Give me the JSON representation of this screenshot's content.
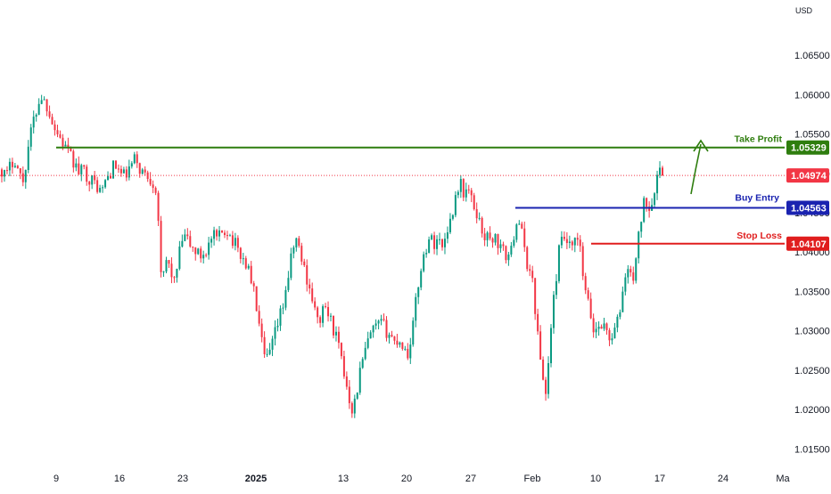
{
  "chart_data": {
    "type": "candlestick",
    "currency": "USD",
    "y_range": [
      1.0138,
      1.0675
    ],
    "y_ticks": [
      "1.06500",
      "1.06000",
      "1.05500",
      "1.05000",
      "1.04500",
      "1.04000",
      "1.03500",
      "1.03000",
      "1.02500",
      "1.02000",
      "1.01500"
    ],
    "x_ticks": [
      {
        "label": "9",
        "bold": false
      },
      {
        "label": "16",
        "bold": false
      },
      {
        "label": "23",
        "bold": false
      },
      {
        "label": "2025",
        "bold": true
      },
      {
        "label": "13",
        "bold": false
      },
      {
        "label": "20",
        "bold": false
      },
      {
        "label": "27",
        "bold": false
      },
      {
        "label": "Feb",
        "bold": false
      },
      {
        "label": "10",
        "bold": false
      },
      {
        "label": "17",
        "bold": false
      },
      {
        "label": "24",
        "bold": false
      },
      {
        "label": "Ma",
        "bold": false
      }
    ],
    "levels": {
      "take_profit": {
        "label": "Take Profit",
        "value_text": "1.05329",
        "value": 1.05329,
        "color": "#2e7d0e"
      },
      "buy_entry": {
        "label": "Buy Entry",
        "value_text": "1.04563",
        "value": 1.04563,
        "color": "#1a23b0"
      },
      "stop_loss": {
        "label": "Stop Loss",
        "value_text": "1.04107",
        "value": 1.04107,
        "color": "#e01e1e"
      },
      "current": {
        "value_text": "1.04974",
        "value": 1.04974,
        "color": "#f23645"
      }
    },
    "price_path": [
      1.0505,
      1.0495,
      1.051,
      1.052,
      1.05,
      1.049,
      1.053,
      1.056,
      1.058,
      1.06,
      1.059,
      1.058,
      1.056,
      1.055,
      1.054,
      1.053,
      1.052,
      1.051,
      1.05,
      1.0505,
      1.0495,
      1.049,
      1.0485,
      1.0475,
      1.049,
      1.05,
      1.051,
      1.0505,
      1.0495,
      1.05,
      1.051,
      1.052,
      1.0505,
      1.05,
      1.0495,
      1.049,
      1.0475,
      1.035,
      1.039,
      1.038,
      1.036,
      1.0395,
      1.042,
      1.0415,
      1.0405,
      1.04,
      1.0395,
      1.04,
      1.041,
      1.042,
      1.0415,
      1.0425,
      1.043,
      1.042,
      1.041,
      1.04,
      1.039,
      1.038,
      1.036,
      1.033,
      1.029,
      1.026,
      1.027,
      1.029,
      1.031,
      1.033,
      1.036,
      1.039,
      1.042,
      1.04,
      1.038,
      1.036,
      1.034,
      1.031,
      1.032,
      1.033,
      1.0315,
      1.03,
      1.028,
      1.025,
      1.023,
      1.02,
      1.0215,
      1.025,
      1.027,
      1.029,
      1.03,
      1.0305,
      1.031,
      1.03,
      1.0295,
      1.0285,
      1.029,
      1.028,
      1.027,
      1.03,
      1.034,
      1.038,
      1.04,
      1.042,
      1.041,
      1.042,
      1.0405,
      1.043,
      1.044,
      1.047,
      1.049,
      1.0475,
      1.048,
      1.046,
      1.045,
      1.043,
      1.042,
      1.0415,
      1.042,
      1.041,
      1.04,
      1.0395,
      1.04,
      1.044,
      1.044,
      1.04,
      1.038,
      1.036,
      1.03,
      1.025,
      1.022,
      1.029,
      1.035,
      1.04,
      1.042,
      1.041,
      1.04,
      1.042,
      1.04,
      1.035,
      1.033,
      1.03,
      1.0305,
      1.031,
      1.03,
      1.029,
      1.03,
      1.032,
      1.036,
      1.038,
      1.036,
      1.04,
      1.044,
      1.047,
      1.0455,
      1.048,
      1.05,
      1.0497
    ]
  }
}
